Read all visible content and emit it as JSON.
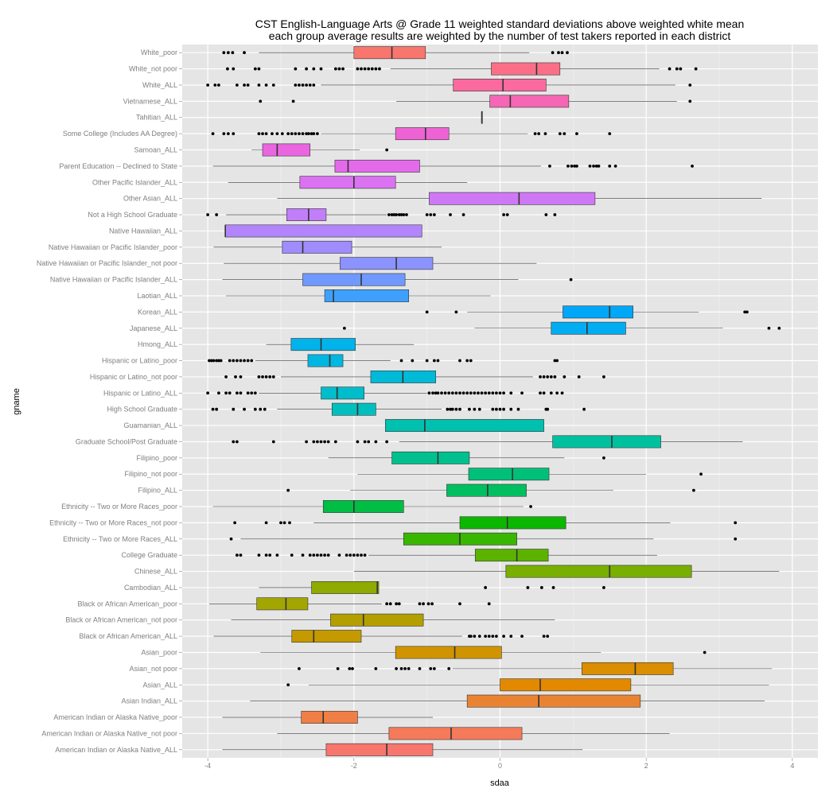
{
  "chart_data": {
    "type": "boxplot",
    "orientation": "horizontal",
    "title": "CST English-Language Arts @ Grade 11 weighted standard deviations above weighted white mean",
    "subtitle": "each group average results are weighted by the number of test takers reported in each district",
    "xlabel": "sdaa",
    "ylabel": "gname",
    "xlim": [
      -4.35,
      4.35
    ],
    "xticks": [
      -4,
      -2,
      0,
      2,
      4
    ],
    "xtick_labels": [
      "-4",
      "-2",
      "0",
      "2",
      "4"
    ],
    "groups": [
      {
        "name": "White_poor",
        "whisker_low": -3.3,
        "q1": -2.0,
        "median": -1.48,
        "q3": -1.02,
        "whisker_high": 0.4,
        "color": "#F8766D",
        "outliers": [
          -3.78,
          -3.72,
          -3.66,
          -3.5,
          0.72,
          0.8,
          0.85,
          0.92
        ]
      },
      {
        "name": "White_not poor",
        "whisker_low": -1.5,
        "q1": -0.12,
        "median": 0.5,
        "q3": 0.82,
        "whisker_high": 2.18,
        "color": "#FA6F87",
        "outliers": [
          -3.73,
          -3.65,
          -3.35,
          -3.3,
          -2.8,
          -2.65,
          -2.55,
          -2.45,
          -2.25,
          -2.2,
          -2.15,
          -1.95,
          -1.9,
          -1.85,
          -1.8,
          -1.75,
          -1.7,
          -1.65,
          2.32,
          2.42,
          2.47,
          2.68
        ]
      },
      {
        "name": "White_ALL",
        "whisker_low": -2.45,
        "q1": -0.64,
        "median": 0.04,
        "q3": 0.63,
        "whisker_high": 2.4,
        "color": "#FB6A9E",
        "outliers": [
          -4.0,
          -3.9,
          -3.85,
          -3.6,
          -3.5,
          -3.45,
          -3.3,
          -3.2,
          -3.1,
          -2.8,
          -2.75,
          -2.7,
          -2.65,
          -2.6,
          -2.55,
          2.6
        ]
      },
      {
        "name": "Vietnamese_ALL",
        "whisker_low": -1.42,
        "q1": -0.14,
        "median": 0.14,
        "q3": 0.94,
        "whisker_high": 2.42,
        "color": "#F566B4",
        "outliers": [
          -3.28,
          -2.83,
          2.6
        ]
      },
      {
        "name": "Tahitian_ALL",
        "whisker_low": -0.25,
        "q1": -0.25,
        "median": -0.25,
        "q3": -0.25,
        "whisker_high": -0.25,
        "color": "#F265C6",
        "outliers": []
      },
      {
        "name": "Some College (Includes AA Degree)",
        "whisker_low": -2.45,
        "q1": -1.43,
        "median": -1.02,
        "q3": -0.7,
        "whisker_high": 0.38,
        "color": "#EE63D4",
        "outliers": [
          -3.93,
          -3.78,
          -3.72,
          -3.65,
          -3.3,
          -3.25,
          -3.2,
          -3.12,
          -3.05,
          -2.98,
          -2.9,
          -2.85,
          -2.8,
          -2.75,
          -2.7,
          -2.65,
          -2.62,
          -2.58,
          -2.55,
          -2.5,
          0.48,
          0.53,
          0.62,
          0.82,
          0.88,
          1.05,
          1.5
        ]
      },
      {
        "name": "Samoan_ALL",
        "whisker_low": -3.4,
        "q1": -3.25,
        "median": -3.05,
        "q3": -2.6,
        "whisker_high": -1.92,
        "color": "#EA65E0",
        "outliers": [
          -1.55
        ]
      },
      {
        "name": "Parent Education -- Declined to State",
        "whisker_low": -3.93,
        "q1": -2.26,
        "median": -2.08,
        "q3": -1.1,
        "whisker_high": 0.56,
        "color": "#E36BEA",
        "outliers": [
          0.68,
          0.93,
          0.98,
          1.02,
          1.05,
          1.23,
          1.28,
          1.32,
          1.35,
          1.5,
          1.58,
          2.63
        ]
      },
      {
        "name": "Other Pacific Islander_ALL",
        "whisker_low": -3.72,
        "q1": -2.74,
        "median": -2.0,
        "q3": -1.43,
        "whisker_high": -0.45,
        "color": "#DA72F2",
        "outliers": []
      },
      {
        "name": "Other Asian_ALL",
        "whisker_low": -3.05,
        "q1": -0.97,
        "median": 0.26,
        "q3": 1.3,
        "whisker_high": 3.58,
        "color": "#CF78F6",
        "outliers": []
      },
      {
        "name": "Not a High School Graduate",
        "whisker_low": -3.75,
        "q1": -2.92,
        "median": -2.62,
        "q3": -2.38,
        "whisker_high": -1.55,
        "color": "#C27EF9",
        "outliers": [
          -4.0,
          -3.88,
          -1.52,
          -1.48,
          -1.45,
          -1.42,
          -1.38,
          -1.35,
          -1.32,
          -1.28,
          -1.0,
          -0.95,
          -0.9,
          -0.68,
          -0.5,
          0.05,
          0.1,
          0.63,
          0.75
        ]
      },
      {
        "name": "Native Hawaiian_ALL",
        "whisker_low": -3.76,
        "q1": -3.76,
        "median": -3.76,
        "q3": -1.07,
        "whisker_high": -1.07,
        "color": "#B285FC",
        "outliers": []
      },
      {
        "name": "Native Hawaiian or Pacific Islander_poor",
        "whisker_low": -3.92,
        "q1": -2.98,
        "median": -2.7,
        "q3": -2.03,
        "whisker_high": -0.8,
        "color": "#A08CFD",
        "outliers": []
      },
      {
        "name": "Native Hawaiian or Pacific Islander_not poor",
        "whisker_low": -3.78,
        "q1": -2.19,
        "median": -1.42,
        "q3": -0.92,
        "whisker_high": 0.5,
        "color": "#8C92FE",
        "outliers": []
      },
      {
        "name": "Native Hawaiian or Pacific Islander_ALL",
        "whisker_low": -3.8,
        "q1": -2.7,
        "median": -1.9,
        "q3": -1.3,
        "whisker_high": 0.25,
        "color": "#6F99FE",
        "outliers": [
          0.97
        ]
      },
      {
        "name": "Laotian_ALL",
        "whisker_low": -3.75,
        "q1": -2.4,
        "median": -2.28,
        "q3": -1.25,
        "whisker_high": -0.13,
        "color": "#3EA0FC",
        "outliers": []
      },
      {
        "name": "Korean_ALL",
        "whisker_low": -0.45,
        "q1": 0.86,
        "median": 1.5,
        "q3": 1.82,
        "whisker_high": 2.72,
        "color": "#00A7F8",
        "outliers": [
          -1.0,
          -0.6,
          3.35,
          3.38
        ]
      },
      {
        "name": "Japanese_ALL",
        "whisker_low": -0.35,
        "q1": 0.7,
        "median": 1.19,
        "q3": 1.72,
        "whisker_high": 3.05,
        "color": "#00ADF2",
        "outliers": [
          -2.13,
          3.68,
          3.82
        ]
      },
      {
        "name": "Hmong_ALL",
        "whisker_low": -3.2,
        "q1": -2.86,
        "median": -2.45,
        "q3": -1.98,
        "whisker_high": -1.18,
        "color": "#00B3EA",
        "outliers": []
      },
      {
        "name": "Hispanic or Latino_poor",
        "whisker_low": -3.35,
        "q1": -2.63,
        "median": -2.33,
        "q3": -2.15,
        "whisker_high": -1.5,
        "color": "#00B7E1",
        "outliers": [
          -3.98,
          -3.95,
          -3.92,
          -3.88,
          -3.85,
          -3.82,
          -3.7,
          -3.65,
          -3.6,
          -3.55,
          -3.5,
          -3.45,
          -3.4,
          -1.35,
          -1.2,
          -1.0,
          -0.9,
          -0.85,
          -0.55,
          -0.45,
          -0.4,
          0.75,
          0.78
        ]
      },
      {
        "name": "Hispanic or Latino_not poor",
        "whisker_low": -3.0,
        "q1": -1.77,
        "median": -1.33,
        "q3": -0.88,
        "whisker_high": 0.45,
        "color": "#00BAD7",
        "outliers": [
          -3.75,
          -3.62,
          -3.55,
          -3.3,
          -3.25,
          -3.2,
          -3.15,
          -3.1,
          0.55,
          0.6,
          0.65,
          0.7,
          0.75,
          0.88,
          1.08,
          1.42
        ]
      },
      {
        "name": "Hispanic or Latino_ALL",
        "whisker_low": -3.3,
        "q1": -2.45,
        "median": -2.23,
        "q3": -1.86,
        "whisker_high": -1.0,
        "color": "#00BDCB",
        "outliers": [
          -4.0,
          -3.85,
          -3.75,
          -3.7,
          -3.6,
          -3.55,
          -3.45,
          -3.4,
          -3.35,
          -0.97,
          -0.92,
          -0.88,
          -0.85,
          -0.8,
          -0.75,
          -0.7,
          -0.65,
          -0.6,
          -0.55,
          -0.5,
          -0.45,
          -0.4,
          -0.35,
          -0.3,
          -0.25,
          -0.2,
          -0.15,
          -0.1,
          -0.05,
          0.0,
          0.05,
          0.15,
          0.3,
          0.55,
          0.6,
          0.7,
          0.78,
          0.85
        ]
      },
      {
        "name": "High School Graduate",
        "whisker_low": -3.05,
        "q1": -2.3,
        "median": -1.95,
        "q3": -1.7,
        "whisker_high": -0.8,
        "color": "#00BFBE",
        "outliers": [
          -3.93,
          -3.88,
          -3.65,
          -3.5,
          -3.35,
          -3.28,
          -3.22,
          -0.72,
          -0.68,
          -0.65,
          -0.6,
          -0.55,
          -0.42,
          -0.35,
          -0.28,
          -0.1,
          -0.05,
          0.0,
          0.05,
          0.15,
          0.25,
          0.63,
          0.65,
          1.15
        ]
      },
      {
        "name": "Guamanian_ALL",
        "whisker_low": -1.57,
        "q1": -1.57,
        "median": -1.03,
        "q3": 0.6,
        "whisker_high": 0.6,
        "color": "#00C0AF",
        "outliers": []
      },
      {
        "name": "Graduate School/Post Graduate",
        "whisker_low": -1.38,
        "q1": 0.72,
        "median": 1.53,
        "q3": 2.2,
        "whisker_high": 3.32,
        "color": "#00C19F",
        "outliers": [
          -3.65,
          -3.6,
          -3.1,
          -2.65,
          -2.55,
          -2.5,
          -2.45,
          -2.4,
          -2.35,
          -2.25,
          -1.95,
          -1.85,
          -1.8,
          -1.7,
          -1.55
        ]
      },
      {
        "name": "Filipino_poor",
        "whisker_low": -2.35,
        "q1": -1.48,
        "median": -0.85,
        "q3": -0.42,
        "whisker_high": 0.88,
        "color": "#00C18D",
        "outliers": [
          1.42
        ]
      },
      {
        "name": "Filipino_not poor",
        "whisker_low": -1.95,
        "q1": -0.43,
        "median": 0.17,
        "q3": 0.67,
        "whisker_high": 2.0,
        "color": "#00C079",
        "outliers": [
          2.75
        ]
      },
      {
        "name": "Filipino_ALL",
        "whisker_low": -2.05,
        "q1": -0.73,
        "median": -0.17,
        "q3": 0.36,
        "whisker_high": 1.55,
        "color": "#00BF61",
        "outliers": [
          -2.9,
          2.65
        ]
      },
      {
        "name": "Ethnicity -- Two or More Races_poor",
        "whisker_low": -3.93,
        "q1": -2.42,
        "median": -2.0,
        "q3": -1.32,
        "whisker_high": 0.32,
        "color": "#00BD44",
        "outliers": [
          0.42
        ]
      },
      {
        "name": "Ethnicity -- Two or More Races_not poor",
        "whisker_low": -2.55,
        "q1": -0.55,
        "median": 0.1,
        "q3": 0.9,
        "whisker_high": 2.33,
        "color": "#0CB702",
        "outliers": [
          -3.63,
          -3.2,
          -3.0,
          -2.95,
          -2.88,
          3.22
        ]
      },
      {
        "name": "Ethnicity -- Two or More Races_ALL",
        "whisker_low": -3.55,
        "q1": -1.32,
        "median": -0.55,
        "q3": 0.23,
        "whisker_high": 2.1,
        "color": "#39B600",
        "outliers": [
          -3.68,
          3.22
        ]
      },
      {
        "name": "College Graduate",
        "whisker_low": -1.8,
        "q1": -0.34,
        "median": 0.23,
        "q3": 0.66,
        "whisker_high": 2.15,
        "color": "#5BB300",
        "outliers": [
          -3.6,
          -3.55,
          -3.3,
          -3.2,
          -3.15,
          -3.05,
          -2.85,
          -2.7,
          -2.6,
          -2.55,
          -2.5,
          -2.45,
          -2.4,
          -2.35,
          -2.2,
          -2.1,
          -2.05,
          -2.0,
          -1.95,
          -1.9,
          -1.85
        ]
      },
      {
        "name": "Chinese_ALL",
        "whisker_low": -2.0,
        "q1": 0.08,
        "median": 1.5,
        "q3": 2.62,
        "whisker_high": 3.82,
        "color": "#78AF00",
        "outliers": []
      },
      {
        "name": "Cambodian_ALL",
        "whisker_low": -3.3,
        "q1": -2.58,
        "median": -1.68,
        "q3": -1.66,
        "whisker_high": -1.66,
        "color": "#8FAA00",
        "outliers": [
          -0.2,
          0.38,
          0.57,
          0.73,
          1.42
        ]
      },
      {
        "name": "Black or African American_poor",
        "whisker_low": -3.98,
        "q1": -3.33,
        "median": -2.93,
        "q3": -2.63,
        "whisker_high": -1.62,
        "color": "#A3A500",
        "outliers": [
          -1.55,
          -1.5,
          -1.42,
          -1.38,
          -1.1,
          -1.05,
          -0.98,
          -0.93,
          -0.55,
          -0.15
        ]
      },
      {
        "name": "Black or African American_not poor",
        "whisker_low": -3.68,
        "q1": -2.32,
        "median": -1.87,
        "q3": -1.05,
        "whisker_high": 0.75,
        "color": "#B49F00",
        "outliers": []
      },
      {
        "name": "Black or African American_ALL",
        "whisker_low": -3.92,
        "q1": -2.85,
        "median": -2.55,
        "q3": -1.9,
        "whisker_high": -0.52,
        "color": "#C49A00",
        "outliers": [
          -0.42,
          -0.4,
          -0.35,
          -0.28,
          -0.2,
          -0.15,
          -0.1,
          -0.05,
          0.05,
          0.15,
          0.3,
          0.6,
          0.65
        ]
      },
      {
        "name": "Asian_poor",
        "whisker_low": -3.28,
        "q1": -1.43,
        "median": -0.62,
        "q3": 0.02,
        "whisker_high": 1.38,
        "color": "#D09400",
        "outliers": [
          2.8
        ]
      },
      {
        "name": "Asian_not poor",
        "whisker_low": -0.65,
        "q1": 1.12,
        "median": 1.85,
        "q3": 2.37,
        "whisker_high": 3.72,
        "color": "#DB8E00",
        "outliers": [
          -2.75,
          -2.22,
          -2.06,
          -2.02,
          -1.7,
          -1.42,
          -1.35,
          -1.3,
          -1.25,
          -1.1,
          -0.95,
          -0.9,
          -0.7
        ]
      },
      {
        "name": "Asian_ALL",
        "whisker_low": -2.62,
        "q1": 0.0,
        "median": 0.55,
        "q3": 1.79,
        "whisker_high": 3.68,
        "color": "#E38900",
        "outliers": [
          -2.9
        ]
      },
      {
        "name": "Asian Indian_ALL",
        "whisker_low": -3.42,
        "q1": -0.45,
        "median": 0.53,
        "q3": 1.92,
        "whisker_high": 3.62,
        "color": "#EA8331",
        "outliers": []
      },
      {
        "name": "American Indian or Alaska Native_poor",
        "whisker_low": -3.8,
        "q1": -2.72,
        "median": -2.42,
        "q3": -1.95,
        "whisker_high": -0.92,
        "color": "#F07F46",
        "outliers": []
      },
      {
        "name": "American Indian or Alaska Native_not poor",
        "whisker_low": -3.05,
        "q1": -1.52,
        "median": -0.67,
        "q3": 0.3,
        "whisker_high": 2.32,
        "color": "#F57A59",
        "outliers": []
      },
      {
        "name": "American Indian or Alaska Native_ALL",
        "whisker_low": -3.8,
        "q1": -2.38,
        "median": -1.55,
        "q3": -0.92,
        "whisker_high": 1.13,
        "color": "#F8766D",
        "outliers": []
      }
    ]
  }
}
